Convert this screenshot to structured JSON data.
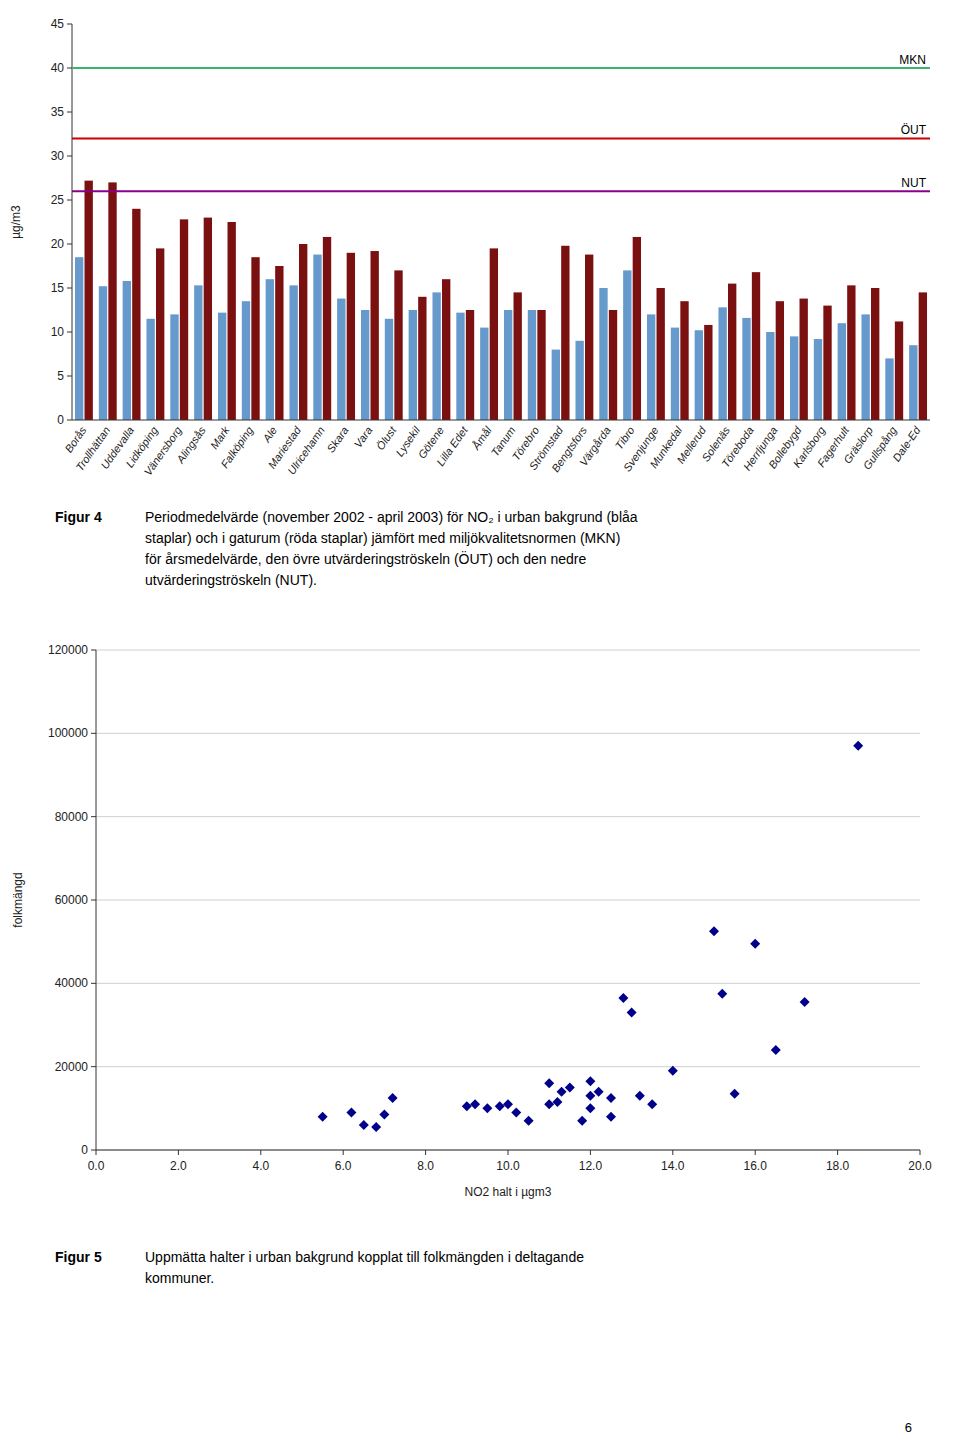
{
  "chart_data": [
    {
      "type": "bar",
      "categories": [
        "Borås",
        "Trollhättan",
        "Uddevalla",
        "Lidköping",
        "Vänersborg",
        "Alingsås",
        "Mark",
        "Falköping",
        "Ale",
        "Mariestad",
        "Ulricehamn",
        "Skara",
        "Vara",
        "Ölust",
        "Lysekil",
        "Götene",
        "Lilla Edet",
        "Åmål",
        "Tanum",
        "Törebro",
        "Strömstad",
        "Bengtsfors",
        "Värgårda",
        "Tibro",
        "Svenjunge",
        "Munkedal",
        "Mellerud",
        "Solenäs",
        "Töreboda",
        "Herrljunga",
        "Bollebygd",
        "Karlsborg",
        "Fagerhult",
        "Gräslorp",
        "Gullspång",
        "Dale-Ed"
      ],
      "series": [
        {
          "color": "#6699cc",
          "values": [
            18.5,
            15.2,
            15.8,
            11.5,
            12.0,
            15.3,
            12.2,
            13.5,
            16.0,
            15.3,
            18.8,
            13.8,
            12.5,
            11.5,
            12.5,
            14.5,
            12.2,
            10.5,
            12.5,
            12.5,
            8.0,
            9.0,
            15.0,
            17.0,
            12.0,
            10.5,
            10.2,
            12.8,
            11.6,
            10.0,
            9.5,
            9.2,
            11.0,
            12.0,
            7.0,
            8.5
          ]
        },
        {
          "color": "#7b1010",
          "values": [
            27.2,
            27.0,
            24.0,
            19.5,
            22.8,
            23.0,
            22.5,
            18.5,
            17.5,
            20.0,
            20.8,
            19.0,
            19.2,
            17.0,
            14.0,
            16.0,
            12.5,
            19.5,
            14.5,
            12.5,
            19.8,
            18.8,
            12.5,
            20.8,
            15.0,
            13.5,
            10.8,
            15.5,
            16.8,
            13.5,
            13.8,
            13.0,
            15.3,
            15.0,
            11.2,
            14.5
          ]
        }
      ],
      "reference_lines": [
        {
          "name": "MKN",
          "value": 40,
          "color": "#3cb371"
        },
        {
          "name": "ÖUT",
          "value": 32,
          "color": "#cc0000"
        },
        {
          "name": "NUT",
          "value": 26,
          "color": "#8b008b"
        }
      ],
      "y_label": "µg/m3",
      "ylim": [
        0,
        45
      ],
      "yticks": [
        0,
        5,
        10,
        15,
        20,
        25,
        30,
        35,
        40,
        45
      ],
      "grid": false,
      "annotations": [
        "Figur 4",
        "Periodmedelvärde (november 2002 - april 2003) för NO₂ i urban bakgrund (blåa\nstaplar) och i gaturum (röda staplar) jämfört med miljökvalitetsnormen (MKN)\nför årsmedelvärde, den övre utvärderingströskeln (ÖUT) och den nedre\nutvärderingströskeln (NUT)."
      ]
    },
    {
      "type": "scatter",
      "x": [
        5.5,
        6.2,
        6.5,
        6.8,
        7.0,
        7.2,
        9.0,
        9.2,
        9.5,
        9.8,
        10.0,
        10.2,
        10.5,
        11.0,
        11.0,
        11.2,
        11.3,
        11.5,
        11.8,
        12.0,
        12.0,
        12.0,
        12.2,
        12.5,
        12.5,
        12.8,
        13.0,
        13.2,
        13.5,
        14.0,
        15.0,
        15.2,
        15.5,
        16.0,
        16.5,
        17.2,
        18.5
      ],
      "values": [
        8000,
        9000,
        6000,
        5500,
        8500,
        12500,
        10500,
        11000,
        10000,
        10500,
        11000,
        9000,
        7000,
        16000,
        11000,
        11500,
        14000,
        15000,
        7000,
        16500,
        13000,
        10000,
        14000,
        12500,
        8000,
        36500,
        33000,
        13000,
        11000,
        19000,
        52500,
        37500,
        13500,
        49500,
        24000,
        35500,
        97000
      ],
      "color": "#00008b",
      "marker": "diamond",
      "x_label": "NO2 halt i µgm3",
      "y_label": "folkmängd",
      "xlim": [
        0.0,
        20.0
      ],
      "ylim": [
        0,
        120000
      ],
      "xticks": [
        {
          "value": 0,
          "label": "0.0"
        },
        {
          "value": 2,
          "label": "2.0"
        },
        {
          "value": 4,
          "label": "4.0"
        },
        {
          "value": 6,
          "label": "6.0"
        },
        {
          "value": 8,
          "label": "8.0"
        },
        {
          "value": 10,
          "label": "10.0"
        },
        {
          "value": 12,
          "label": "12.0"
        },
        {
          "value": 14,
          "label": "14.0"
        },
        {
          "value": 16,
          "label": "16.0"
        },
        {
          "value": 18,
          "label": "18.0"
        },
        {
          "value": 20,
          "label": "20.0"
        }
      ],
      "yticks": [
        0,
        20000,
        40000,
        60000,
        80000,
        100000,
        120000
      ],
      "grid": true,
      "annotations": [
        "Figur 5",
        "Uppmätta halter i urban bakgrund kopplat till folkmängden i deltagande\nkommuner.",
        "6"
      ]
    }
  ]
}
